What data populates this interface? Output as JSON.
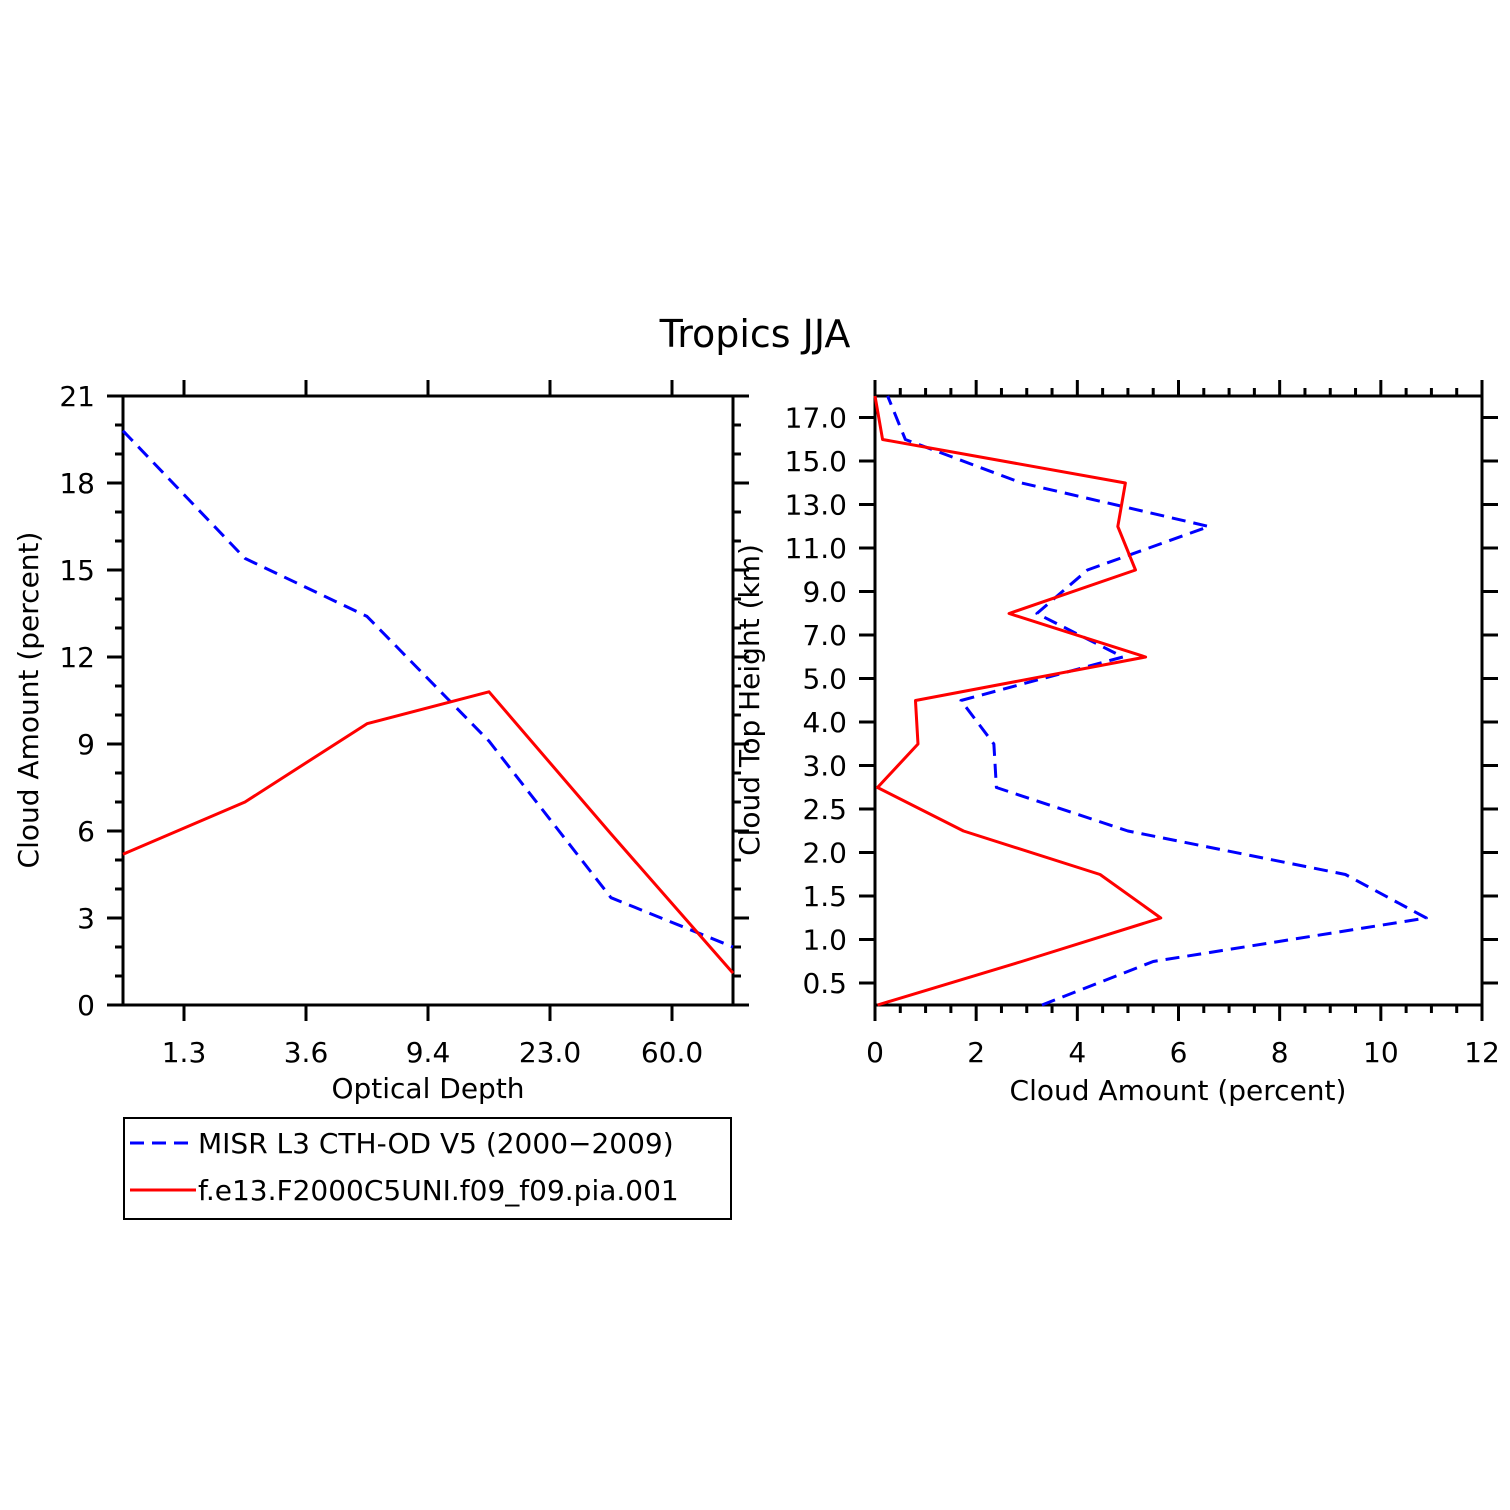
{
  "colors": {
    "obs": "#0000ff",
    "model": "#ff0000",
    "axis": "#000000"
  },
  "chart_data": [
    {
      "type": "line",
      "title": "Tropics JJA",
      "xlabel": "Optical Depth",
      "ylabel": "Cloud Amount (percent)",
      "x_ticks": [
        "1.3",
        "3.6",
        "9.4",
        "23.0",
        "60.0"
      ],
      "x_index": [
        0,
        1,
        2,
        3,
        4,
        5
      ],
      "ylim": [
        0,
        21
      ],
      "y_ticks": [
        "0",
        "3",
        "6",
        "9",
        "12",
        "15",
        "18",
        "21"
      ],
      "series": [
        {
          "name": "MISR L3 CTH-OD V5 (2000-2009)",
          "style": "dashed",
          "values": [
            19.8,
            15.4,
            13.4,
            9.1,
            3.7,
            2.0
          ]
        },
        {
          "name": "f.e13.F2000C5UNI.f09_f09.pia.001",
          "style": "solid",
          "values": [
            5.2,
            7.0,
            9.7,
            10.8,
            5.9,
            1.1
          ]
        }
      ]
    },
    {
      "type": "line",
      "xlabel": "Cloud Amount (percent)",
      "ylabel": "Cloud Top Height (km)",
      "xlim": [
        0,
        12
      ],
      "x_ticks": [
        "0",
        "2",
        "4",
        "6",
        "8",
        "10",
        "12"
      ],
      "y_ticks": [
        "0.5",
        "1.0",
        "1.5",
        "2.0",
        "2.5",
        "3.0",
        "4.0",
        "5.0",
        "7.0",
        "9.0",
        "11.0",
        "13.0",
        "15.0",
        "17.0"
      ],
      "level_index": [
        0,
        1,
        2,
        3,
        4,
        5,
        6,
        7,
        8,
        9,
        10,
        11,
        12,
        13,
        14
      ],
      "series": [
        {
          "name": "MISR L3 CTH-OD V5 (2000-2009)",
          "style": "dashed",
          "values": [
            3.3,
            5.5,
            10.9,
            9.3,
            5.0,
            2.4,
            2.35,
            1.7,
            4.9,
            3.2,
            4.2,
            6.6,
            2.9,
            0.6,
            0.25
          ]
        },
        {
          "name": "f.e13.F2000C5UNI.f09_f09.pia.001",
          "style": "solid",
          "values": [
            0.05,
            2.9,
            5.65,
            4.45,
            1.75,
            0.05,
            0.85,
            0.8,
            5.35,
            2.65,
            5.15,
            4.8,
            4.95,
            0.15,
            0.0
          ]
        }
      ]
    }
  ],
  "legend": [
    {
      "label": "MISR L3 CTH-OD V5 (2000−2009)",
      "style": "dashed"
    },
    {
      "label": "f.e13.F2000C5UNI.f09_f09.pia.001",
      "style": "solid"
    }
  ]
}
